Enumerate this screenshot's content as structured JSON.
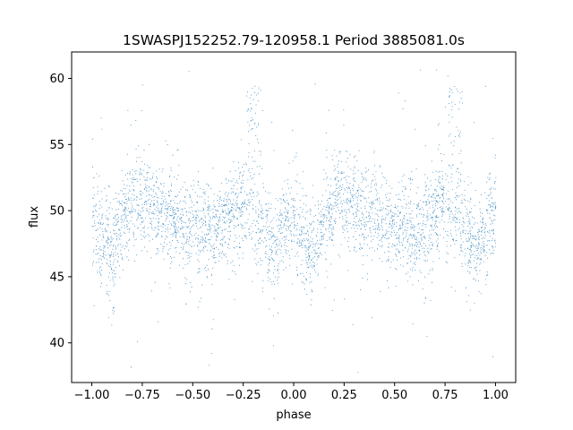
{
  "chart_data": {
    "type": "scatter",
    "title": "1SWASPJ152252.79-120958.1 Period 3885081.0s",
    "xlabel": "phase",
    "ylabel": "flux",
    "xlim": [
      -1.1,
      1.1
    ],
    "ylim": [
      37,
      62
    ],
    "xticks": [
      -1.0,
      -0.75,
      -0.5,
      -0.25,
      0.0,
      0.25,
      0.5,
      0.75,
      1.0
    ],
    "xtick_labels": [
      "−1.00",
      "−0.75",
      "−0.50",
      "−0.25",
      "0.00",
      "0.25",
      "0.50",
      "0.75",
      "1.00"
    ],
    "yticks": [
      40,
      45,
      50,
      55,
      60
    ],
    "ytick_labels": [
      "40",
      "45",
      "50",
      "55",
      "60"
    ],
    "grid": false,
    "point_color": "#1f77b4",
    "profile": {
      "phase": [
        0.0,
        0.05,
        0.1,
        0.15,
        0.2,
        0.25,
        0.3,
        0.35,
        0.4,
        0.45,
        0.5,
        0.55,
        0.6,
        0.65,
        0.7,
        0.75,
        0.8,
        0.85,
        0.9,
        0.95,
        1.0
      ],
      "median_flux": [
        50.0,
        47.5,
        47.0,
        49.5,
        50.5,
        51.0,
        50.5,
        50.0,
        49.5,
        49.0,
        48.5,
        49.0,
        48.0,
        49.0,
        50.0,
        50.5,
        50.0,
        48.5,
        47.0,
        48.5,
        50.0
      ],
      "flare_phase": [
        -0.2,
        0.8
      ],
      "flare_peak_flux": 59.5
    }
  }
}
